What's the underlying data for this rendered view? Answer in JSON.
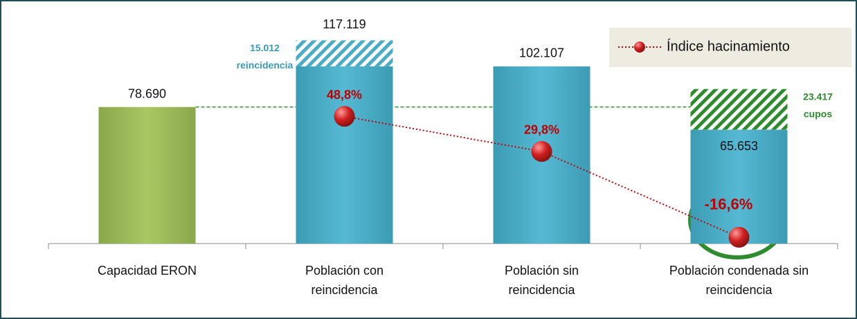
{
  "chart_data": {
    "type": "bar",
    "categories": [
      "Capacidad ERON",
      "Población con reincidencia",
      "Población sin reincidencia",
      "Población condenada sin reincidencia"
    ],
    "ylim": [
      0,
      130000
    ],
    "y2lim": [
      -20,
      102
    ],
    "series": [
      {
        "colors": [
          "#9bbb59",
          "#4bacc6",
          "#4bacc6",
          "#4bacc6"
        ],
        "values": [
          78690,
          102107,
          102107,
          65653
        ],
        "value_labels": [
          "78.690",
          null,
          "102.107",
          "65.653"
        ]
      },
      {
        "colors": [
          null,
          "#4bacc6",
          null,
          "#2e8b2e"
        ],
        "values": [
          null,
          15012,
          null,
          23417
        ],
        "value_labels": [
          null,
          "15.012",
          null,
          "23.417"
        ],
        "captions": [
          null,
          "reincidencia",
          null,
          "cupos"
        ]
      },
      {
        "type": "line",
        "axis": "y2",
        "name": "Índice hacinamiento",
        "color": "#c00000",
        "values": [
          null,
          48.8,
          29.8,
          -16.6
        ],
        "value_labels": [
          null,
          "48,8%",
          "29,8%",
          "-16,6%"
        ]
      }
    ],
    "totals": {
      "values": [
        null,
        117119,
        null,
        null
      ],
      "value_labels": [
        null,
        "117.119",
        null,
        null
      ]
    },
    "legend": "top-right"
  }
}
